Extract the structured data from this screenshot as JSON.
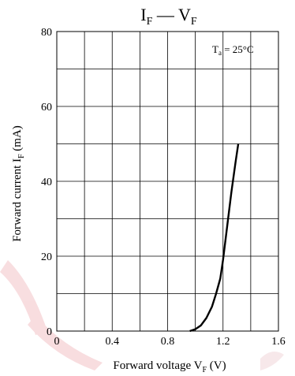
{
  "chart_data": {
    "type": "line",
    "title": "I_F — V_F",
    "title_parts": {
      "i": "I",
      "i_sub": "F",
      "dash": " — ",
      "v": "V",
      "v_sub": "F"
    },
    "annotation": {
      "t": "T",
      "sub": "a",
      "rest": " = 25°C"
    },
    "xlabel": {
      "text": "Forward voltage  V",
      "sub": "F",
      "unit": "  (V)"
    },
    "ylabel": {
      "text": "Forward current  I",
      "sub": "F",
      "unit": "  (mA)"
    },
    "xlim": [
      0,
      1.6
    ],
    "ylim": [
      0,
      80
    ],
    "x_ticks": [
      "0",
      "0.4",
      "0.8",
      "1.2",
      "1.6"
    ],
    "y_ticks": [
      "0",
      "20",
      "40",
      "60",
      "80"
    ],
    "y_tick_values": [
      0,
      20,
      40,
      60,
      80
    ],
    "x_tick_values": [
      0,
      0.4,
      0.8,
      1.2,
      1.6
    ],
    "x_grid": [
      0,
      0.2,
      0.4,
      0.6,
      0.8,
      1.0,
      1.2,
      1.4,
      1.6
    ],
    "y_grid": [
      0,
      10,
      20,
      30,
      40,
      50,
      60,
      70,
      80
    ],
    "grid": true,
    "series": [
      {
        "x": [
          0.96,
          1.0,
          1.04,
          1.08,
          1.12,
          1.15,
          1.18,
          1.2,
          1.23,
          1.26,
          1.29,
          1.31
        ],
        "y": [
          0,
          0.5,
          1.5,
          3.5,
          6.5,
          10,
          14,
          19,
          28,
          37,
          45,
          50
        ]
      }
    ],
    "colors": {
      "line": "#000000",
      "grid": "#000000",
      "watermark": "#e8434f"
    }
  }
}
